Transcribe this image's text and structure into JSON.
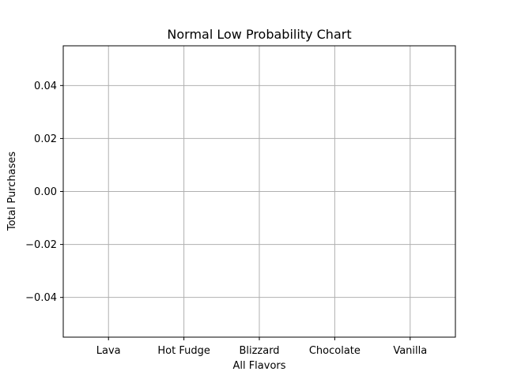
{
  "chart_data": {
    "type": "bar",
    "title": "Normal Low Probability Chart",
    "xlabel": "All Flavors",
    "ylabel": "Total Purchases",
    "categories": [
      "Lava",
      "Hot Fudge",
      "Blizzard",
      "Chocolate",
      "Vanilla"
    ],
    "values": [
      0,
      0,
      0,
      0,
      0
    ],
    "ylim": [
      -0.055,
      0.055
    ],
    "yticks": [
      -0.04,
      -0.02,
      0.0,
      0.02,
      0.04
    ],
    "ytick_labels": [
      "−0.04",
      "−0.02",
      "0.00",
      "0.02",
      "0.04"
    ],
    "grid": true,
    "legend": "none"
  }
}
